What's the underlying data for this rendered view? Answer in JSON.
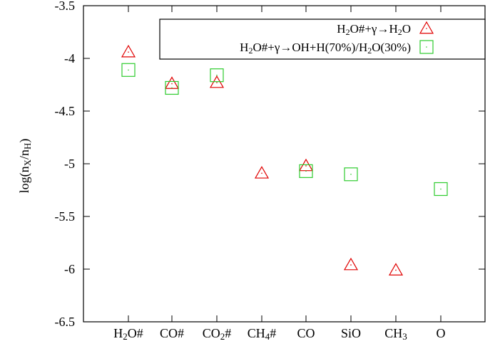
{
  "chart_data": {
    "type": "scatter",
    "ylabel": "log(n_X/n_H)",
    "ylim": [
      -6.5,
      -3.5
    ],
    "yticks": [
      -3.5,
      -4,
      -4.5,
      -5,
      -5.5,
      -6,
      -6.5
    ],
    "ytick_labels": [
      "-3.5",
      "-4",
      "-4.5",
      "-5",
      "-5.5",
      "-6",
      "-6.5"
    ],
    "categories": [
      "H2O#",
      "CO#",
      "CO2#",
      "CH4#",
      "CO",
      "SiO",
      "CH3",
      "O"
    ],
    "grid": false,
    "legend_position": "top-right",
    "series": [
      {
        "name": "H2O#+γ→H2O",
        "marker": "triangle",
        "color": "#e00000",
        "values": [
          -3.94,
          -4.24,
          -4.23,
          -5.09,
          -5.02,
          -5.96,
          -6.01,
          null
        ]
      },
      {
        "name": "H2O#+γ→OH+H(70%)/H2O(30%)",
        "marker": "square",
        "color": "#2ecc2e",
        "values": [
          -4.11,
          -4.28,
          -4.16,
          null,
          -5.07,
          -5.1,
          null,
          -5.24
        ]
      }
    ]
  }
}
